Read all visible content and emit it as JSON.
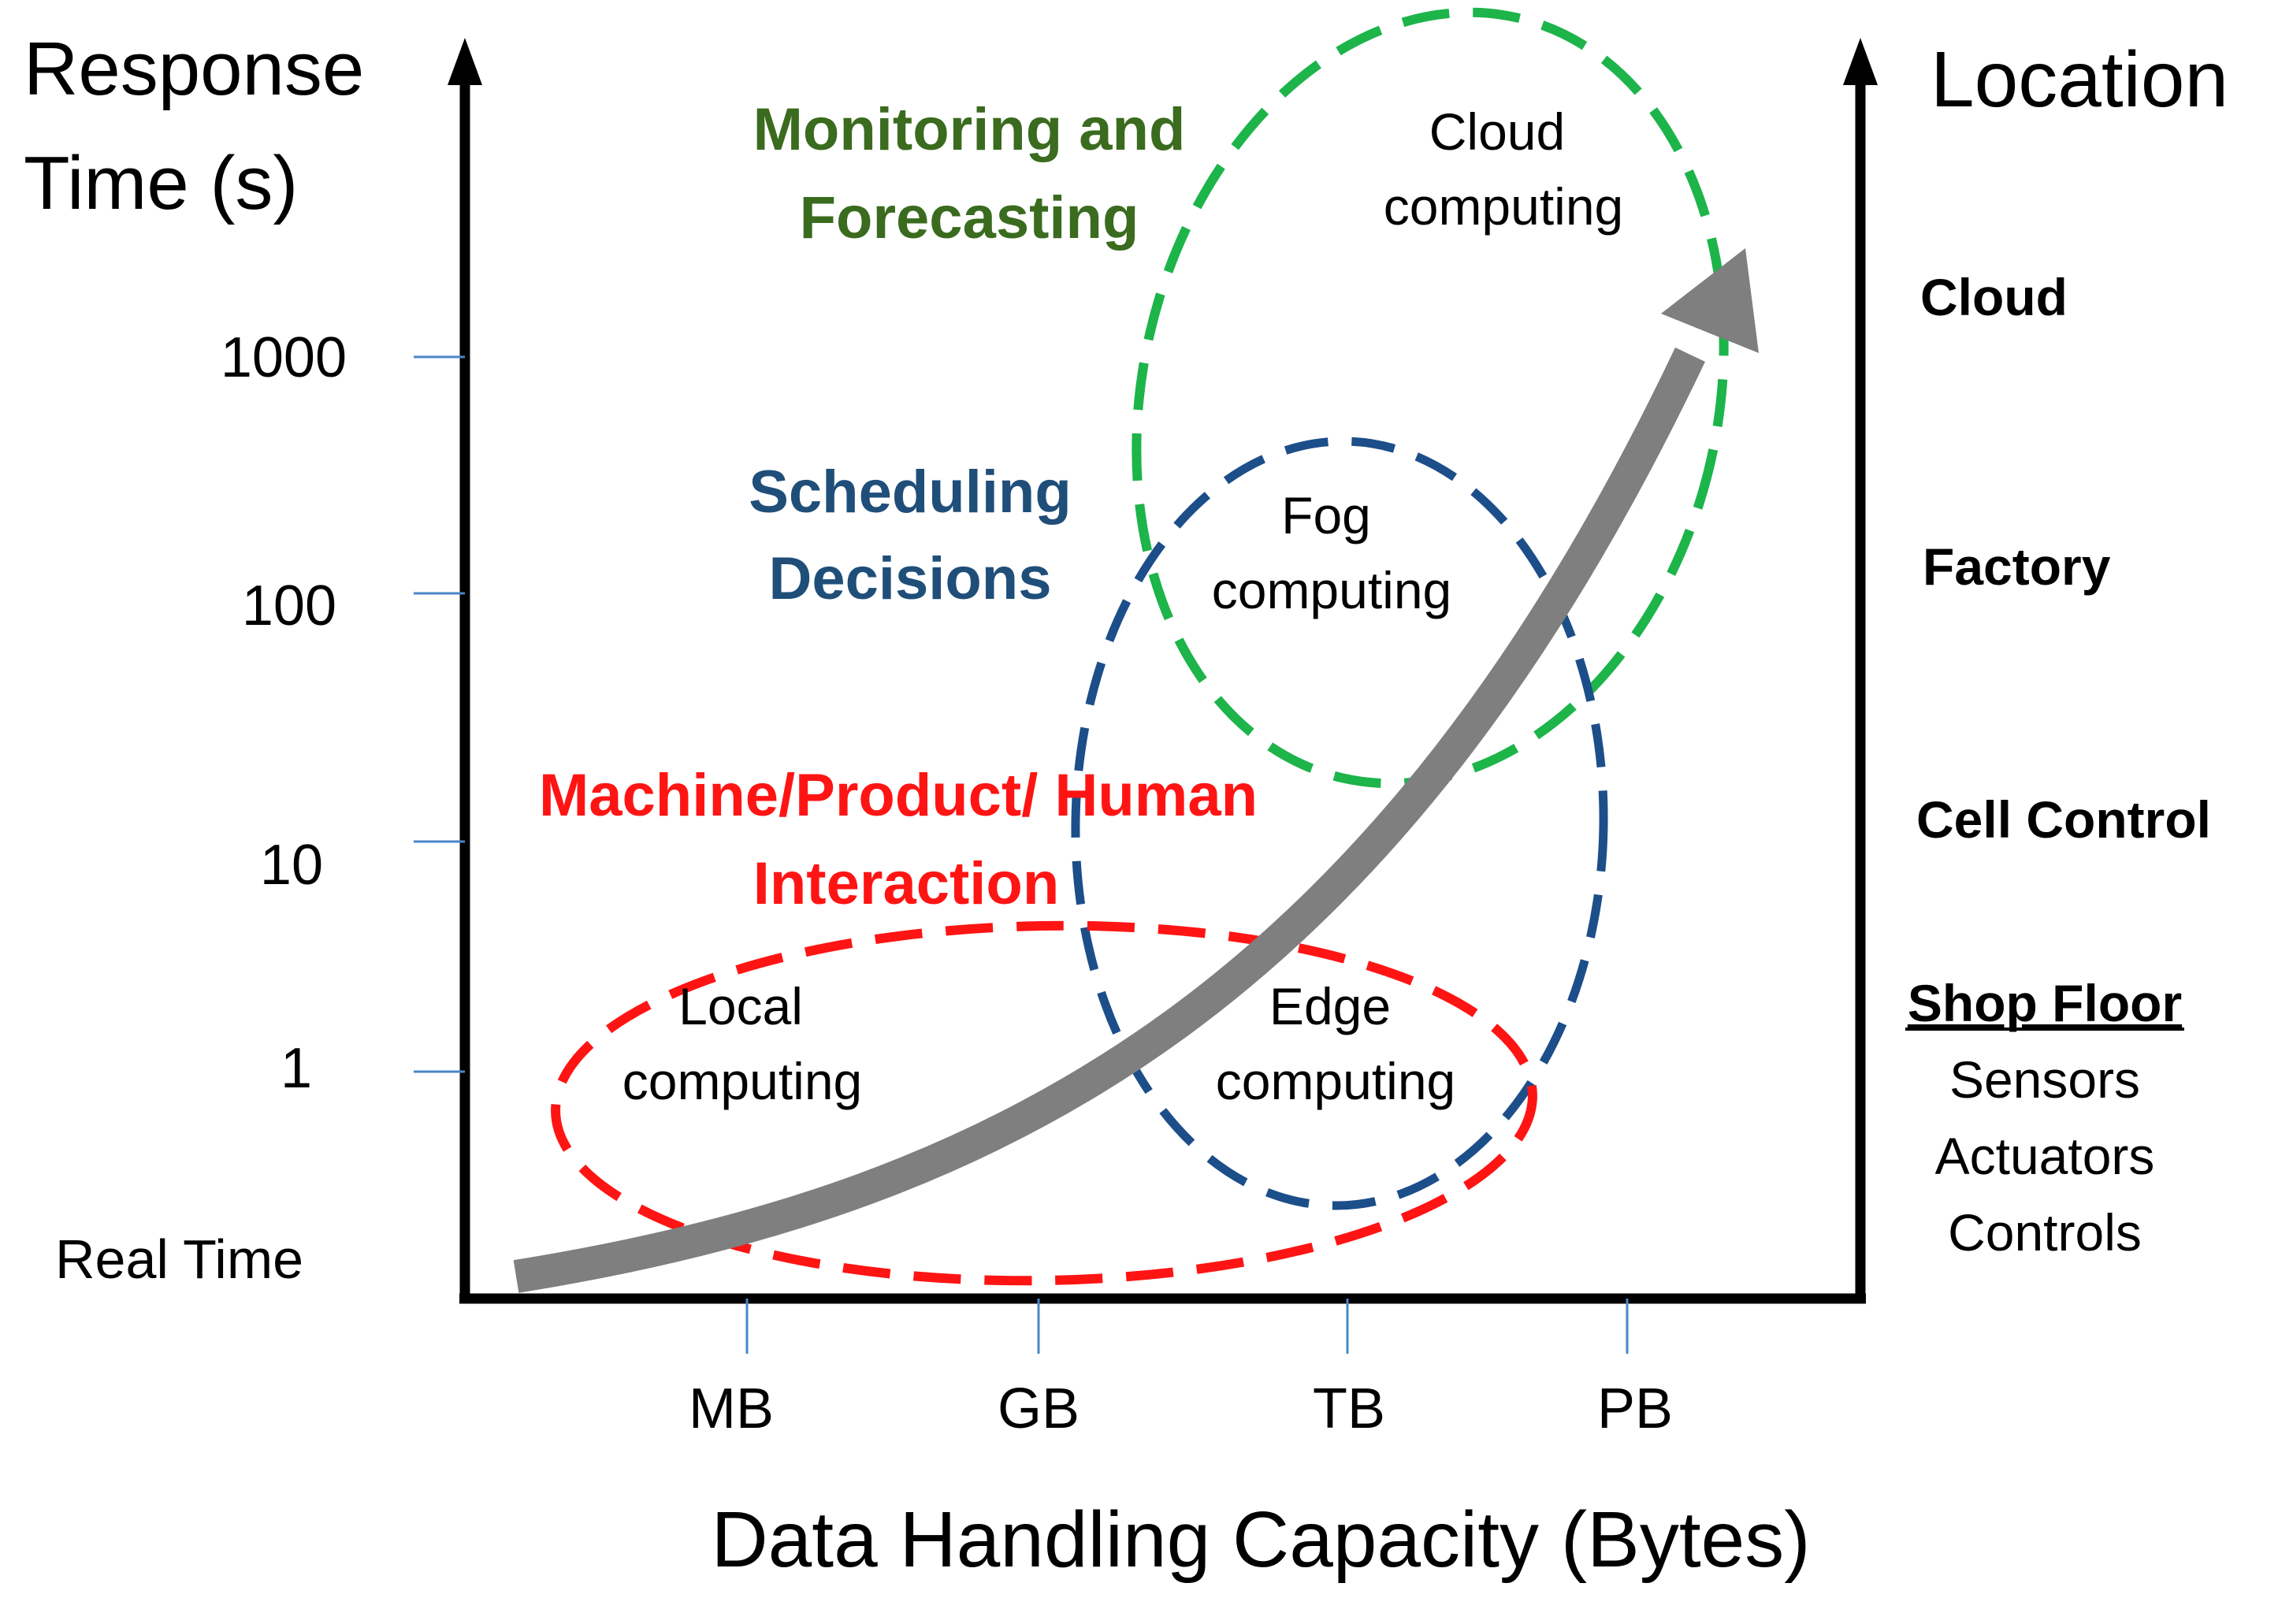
{
  "y_axis": {
    "title_line1": "Response",
    "title_line2": "Time (s)",
    "ticks": [
      "1000",
      "100",
      "10",
      "1"
    ],
    "baseline_label": "Real Time"
  },
  "x_axis": {
    "title": "Data Handling Capacity (Bytes)",
    "ticks": [
      "MB",
      "GB",
      "TB",
      "PB"
    ]
  },
  "location_axis": {
    "title": "Location",
    "levels": [
      "Cloud",
      "Factory",
      "Cell Control"
    ],
    "shop_floor": {
      "title": "Shop Floor",
      "items": [
        "Sensors",
        "Actuators",
        "Controls"
      ]
    }
  },
  "categories": {
    "monitoring": {
      "line1": "Monitoring and",
      "line2": "Forecasting"
    },
    "scheduling": {
      "line1": "Scheduling",
      "line2": "Decisions"
    },
    "interaction": {
      "line1": "Machine/Product/ Human",
      "line2": "Interaction"
    }
  },
  "zones": {
    "cloud": {
      "line1": "Cloud",
      "line2": "computing"
    },
    "fog": {
      "line1": "Fog",
      "line2": "computing"
    },
    "edge": {
      "line1": "Edge",
      "line2": "computing"
    },
    "local": {
      "line1": "Local",
      "line2": "computing"
    }
  },
  "colors": {
    "green": "#1db44a",
    "green_text": "#3a6b1e",
    "blue": "#1c4e8a",
    "blue_text": "#1f4e79",
    "red": "#ff1414",
    "red_text": "#ff1414",
    "arrow": "#7f7f7f",
    "tick": "#4a86c8"
  }
}
